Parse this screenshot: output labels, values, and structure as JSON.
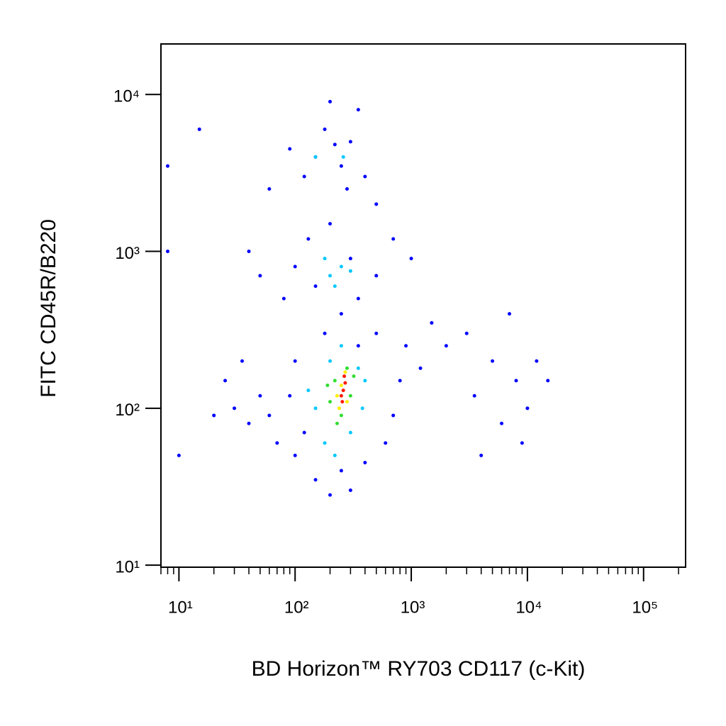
{
  "chart_data": {
    "type": "scatter",
    "x_label": "BD Horizon™ RY703 CD117 (c-Kit)",
    "y_label": "FITC  CD45R/B220",
    "x_log": true,
    "y_log": true,
    "xlim": [
      7,
      230000
    ],
    "ylim": [
      9.7,
      21000
    ],
    "xticks": [
      {
        "value": 10,
        "label": "10¹"
      },
      {
        "value": 100,
        "label": "10²"
      },
      {
        "value": 1000,
        "label": "10³"
      },
      {
        "value": 10000,
        "label": "10⁴"
      },
      {
        "value": 100000,
        "label": "10⁵"
      }
    ],
    "xminorticks": [
      7,
      8,
      9,
      20,
      30,
      40,
      50,
      60,
      70,
      80,
      90,
      200,
      300,
      400,
      500,
      600,
      700,
      800,
      900,
      2000,
      3000,
      4000,
      5000,
      6000,
      7000,
      8000,
      9000,
      20000,
      30000,
      40000,
      50000,
      60000,
      70000,
      80000,
      90000,
      200000
    ],
    "yticks": [
      {
        "value": 10,
        "label": "10¹"
      },
      {
        "value": 100,
        "label": "10²"
      },
      {
        "value": 1000,
        "label": "10³"
      },
      {
        "value": 10000,
        "label": "10⁴"
      }
    ],
    "series": [
      {
        "color": "#0000ff",
        "x": [
          150,
          250,
          300,
          180,
          400,
          120,
          200,
          350,
          60,
          500,
          280,
          90,
          220,
          100,
          150,
          300,
          50,
          40,
          500,
          700,
          200,
          130,
          350,
          80,
          1000,
          250,
          3000,
          5000,
          8000,
          2000,
          10000,
          6000,
          4000,
          12000,
          7000,
          3500,
          9000,
          1500,
          15000,
          30,
          40,
          25,
          50,
          60,
          70,
          35,
          20,
          100,
          150,
          200,
          300,
          250,
          400,
          120,
          600,
          800,
          900,
          500,
          1200,
          100,
          90,
          700,
          180,
          350,
          8,
          8,
          15,
          10
        ],
        "values": [
          4000,
          3500,
          5000,
          6000,
          3000,
          3000,
          9000,
          8000,
          2500,
          2000,
          2500,
          4500,
          4800,
          800,
          600,
          900,
          700,
          1000,
          700,
          1200,
          1500,
          1200,
          500,
          500,
          900,
          400,
          300,
          200,
          150,
          250,
          100,
          80,
          50,
          200,
          400,
          120,
          60,
          350,
          150,
          100,
          80,
          150,
          120,
          90,
          60,
          200,
          90,
          50,
          35,
          28,
          30,
          40,
          45,
          70,
          60,
          150,
          250,
          300,
          180,
          200,
          120,
          90,
          300,
          250,
          1000,
          3500,
          6000,
          50
        ]
      },
      {
        "color": "#00c8ff",
        "x": [
          200,
          250,
          180,
          300,
          220,
          150,
          260,
          200,
          350,
          150,
          300,
          400,
          180,
          250,
          130,
          380,
          220
        ],
        "values": [
          700,
          800,
          900,
          750,
          600,
          4000,
          4000,
          200,
          180,
          100,
          70,
          150,
          60,
          250,
          130,
          100,
          50
        ]
      },
      {
        "color": "#33dd33",
        "x": [
          220,
          300,
          250,
          200,
          280,
          320,
          230,
          190
        ],
        "values": [
          150,
          120,
          90,
          110,
          180,
          160,
          80,
          140
        ]
      },
      {
        "color": "#ffee00",
        "x": [
          250,
          280,
          230,
          270,
          240
        ],
        "values": [
          140,
          110,
          120,
          170,
          100
        ]
      },
      {
        "color": "#ff1a00",
        "x": [
          260,
          270,
          250,
          265,
          255
        ],
        "values": [
          130,
          145,
          120,
          160,
          110
        ]
      }
    ]
  }
}
